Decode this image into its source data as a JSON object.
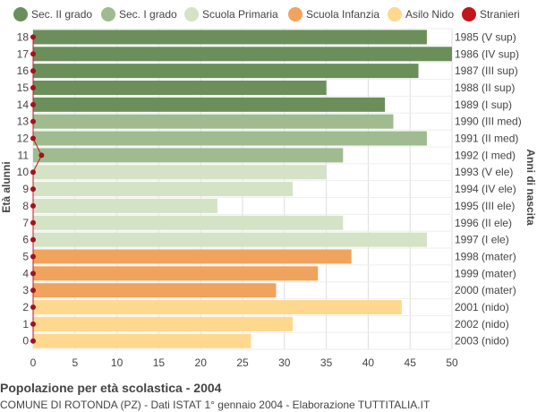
{
  "chart_data": {
    "type": "bar",
    "orientation": "horizontal",
    "title": "Popolazione per età scolastica - 2004",
    "subtitle": "COMUNE DI ROTONDA (PZ) - Dati ISTAT 1° gennaio 2004 - Elaborazione TUTTITALIA.IT",
    "ylabel_left": "Età alunni",
    "ylabel_right": "Anni di nascita",
    "xlim": [
      0,
      50
    ],
    "xticks": [
      0,
      5,
      10,
      15,
      20,
      25,
      30,
      35,
      40,
      45,
      50
    ],
    "grid": true,
    "legend_position": "top",
    "legend": [
      {
        "label": "Sec. II grado",
        "color": "#6b8f5a"
      },
      {
        "label": "Sec. I grado",
        "color": "#9fbb8f"
      },
      {
        "label": "Scuola Primaria",
        "color": "#d4e2c6"
      },
      {
        "label": "Scuola Infanzia",
        "color": "#f0a35c"
      },
      {
        "label": "Asilo Nido",
        "color": "#fdd88e"
      },
      {
        "label": "Stranieri",
        "color": "#c0161d"
      }
    ],
    "bars": [
      {
        "age": "18",
        "birth": "1985 (V sup)",
        "value": 47,
        "group": 0,
        "stranieri": 0
      },
      {
        "age": "17",
        "birth": "1986 (IV sup)",
        "value": 50,
        "group": 0,
        "stranieri": 0
      },
      {
        "age": "16",
        "birth": "1987 (III sup)",
        "value": 46,
        "group": 0,
        "stranieri": 0
      },
      {
        "age": "15",
        "birth": "1988 (II sup)",
        "value": 35,
        "group": 0,
        "stranieri": 0
      },
      {
        "age": "14",
        "birth": "1989 (I sup)",
        "value": 42,
        "group": 0,
        "stranieri": 0
      },
      {
        "age": "13",
        "birth": "1990 (III med)",
        "value": 43,
        "group": 1,
        "stranieri": 0
      },
      {
        "age": "12",
        "birth": "1991 (II med)",
        "value": 47,
        "group": 1,
        "stranieri": 0
      },
      {
        "age": "11",
        "birth": "1992 (I med)",
        "value": 37,
        "group": 1,
        "stranieri": 1
      },
      {
        "age": "10",
        "birth": "1993 (V ele)",
        "value": 35,
        "group": 2,
        "stranieri": 0
      },
      {
        "age": "9",
        "birth": "1994 (IV ele)",
        "value": 31,
        "group": 2,
        "stranieri": 0
      },
      {
        "age": "8",
        "birth": "1995 (III ele)",
        "value": 22,
        "group": 2,
        "stranieri": 0
      },
      {
        "age": "7",
        "birth": "1996 (II ele)",
        "value": 37,
        "group": 2,
        "stranieri": 0
      },
      {
        "age": "6",
        "birth": "1997 (I ele)",
        "value": 47,
        "group": 2,
        "stranieri": 0
      },
      {
        "age": "5",
        "birth": "1998 (mater)",
        "value": 38,
        "group": 3,
        "stranieri": 0
      },
      {
        "age": "4",
        "birth": "1999 (mater)",
        "value": 34,
        "group": 3,
        "stranieri": 0
      },
      {
        "age": "3",
        "birth": "2000 (mater)",
        "value": 29,
        "group": 3,
        "stranieri": 0
      },
      {
        "age": "2",
        "birth": "2001 (nido)",
        "value": 44,
        "group": 4,
        "stranieri": 0
      },
      {
        "age": "1",
        "birth": "2002 (nido)",
        "value": 31,
        "group": 4,
        "stranieri": 0
      },
      {
        "age": "0",
        "birth": "2003 (nido)",
        "value": 26,
        "group": 4,
        "stranieri": 0
      }
    ]
  }
}
